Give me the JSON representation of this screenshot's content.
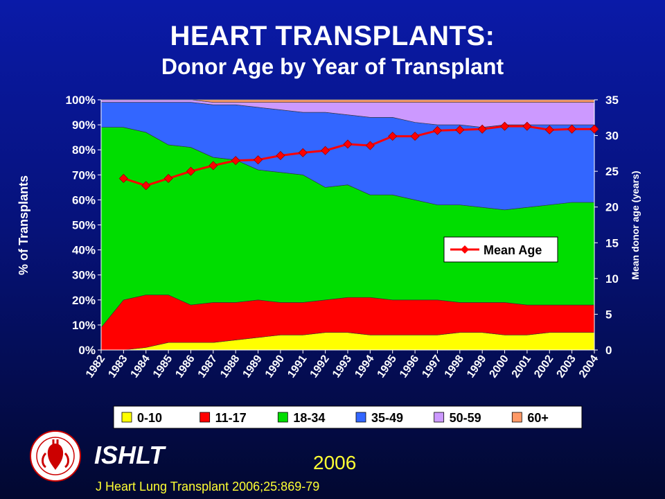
{
  "slide": {
    "title": "HEART TRANSPLANTS:",
    "subtitle": "Donor Age by Year of Transplant",
    "organization": "ISHLT",
    "year": "2006",
    "citation": "J Heart Lung Transplant 2006;25:869-79"
  },
  "logo": {
    "icon": "ishlt-society-seal-icon"
  },
  "chart_data": {
    "type": "area",
    "stacked": true,
    "percent_stacked": true,
    "categories": [
      "1982",
      "1983",
      "1984",
      "1985",
      "1986",
      "1987",
      "1988",
      "1989",
      "1990",
      "1991",
      "1992",
      "1993",
      "1994",
      "1995",
      "1996",
      "1997",
      "1998",
      "1999",
      "2000",
      "2001",
      "2002",
      "2003",
      "2004"
    ],
    "series": [
      {
        "name": "0-10",
        "color": "#ffff00",
        "values": [
          0,
          0,
          1,
          3,
          3,
          3,
          4,
          5,
          6,
          6,
          7,
          7,
          6,
          6,
          6,
          6,
          7,
          7,
          6,
          6,
          7,
          7,
          7
        ]
      },
      {
        "name": "11-17",
        "color": "#ff0000",
        "values": [
          9,
          20,
          21,
          19,
          15,
          16,
          15,
          15,
          13,
          13,
          13,
          14,
          15,
          14,
          14,
          14,
          12,
          12,
          13,
          12,
          11,
          11,
          11
        ]
      },
      {
        "name": "18-34",
        "color": "#00dd00",
        "values": [
          80,
          69,
          65,
          60,
          63,
          58,
          57,
          52,
          52,
          51,
          45,
          45,
          41,
          42,
          40,
          38,
          39,
          38,
          37,
          39,
          40,
          41,
          41
        ]
      },
      {
        "name": "35-49",
        "color": "#3366ff",
        "values": [
          10,
          10,
          12,
          17,
          18,
          21,
          22,
          25,
          25,
          25,
          30,
          28,
          31,
          31,
          31,
          32,
          32,
          32,
          34,
          33,
          32,
          31,
          31
        ]
      },
      {
        "name": "50-59",
        "color": "#cc99ff",
        "values": [
          1,
          1,
          1,
          1,
          1,
          1,
          1,
          2,
          3,
          4,
          4,
          5,
          6,
          6,
          8,
          9,
          9,
          10,
          9,
          9,
          9,
          9,
          9
        ]
      },
      {
        "name": "60+",
        "color": "#ff9966",
        "values": [
          0,
          0,
          0,
          0,
          0,
          1,
          1,
          1,
          1,
          1,
          1,
          1,
          1,
          1,
          1,
          1,
          1,
          1,
          1,
          1,
          1,
          1,
          1
        ]
      }
    ],
    "line_series": {
      "name": "Mean Age",
      "color": "#ff0000",
      "axis": "right",
      "x": [
        "1983",
        "1984",
        "1985",
        "1986",
        "1987",
        "1988",
        "1989",
        "1990",
        "1991",
        "1992",
        "1993",
        "1994",
        "1995",
        "1996",
        "1997",
        "1998",
        "1999",
        "2000",
        "2001",
        "2002",
        "2003",
        "2004"
      ],
      "values": [
        24.0,
        23.0,
        24.0,
        25.0,
        25.8,
        26.5,
        26.6,
        27.2,
        27.6,
        27.9,
        28.8,
        28.6,
        29.9,
        29.9,
        30.7,
        30.8,
        30.9,
        31.3,
        31.3,
        30.8,
        30.9,
        30.9
      ]
    },
    "y_left": {
      "label": "% of Transplants",
      "ticks": [
        "0%",
        "10%",
        "20%",
        "30%",
        "40%",
        "50%",
        "60%",
        "70%",
        "80%",
        "90%",
        "100%"
      ],
      "range": [
        0,
        100
      ]
    },
    "y_right": {
      "label": "Mean donor age (years)",
      "ticks": [
        "0",
        "5",
        "10",
        "15",
        "20",
        "25",
        "30",
        "35"
      ],
      "range": [
        0,
        35
      ]
    },
    "legend_position": "bottom",
    "inner_legend_position": "center-right"
  }
}
